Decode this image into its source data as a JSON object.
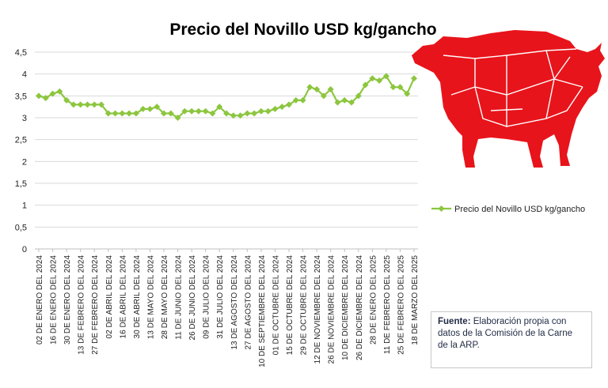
{
  "chart_data": {
    "type": "line",
    "title": "Precio del Novillo USD kg/gancho",
    "series": [
      {
        "name": "Precio del Novillo USD kg/gancho",
        "color": "#8cc63f",
        "values": [
          3.5,
          3.45,
          3.55,
          3.6,
          3.4,
          3.3,
          3.3,
          3.3,
          3.3,
          3.3,
          3.1,
          3.1,
          3.1,
          3.1,
          3.1,
          3.2,
          3.2,
          3.25,
          3.1,
          3.1,
          3.0,
          3.15,
          3.15,
          3.15,
          3.15,
          3.1,
          3.25,
          3.1,
          3.05,
          3.05,
          3.1,
          3.1,
          3.15,
          3.15,
          3.2,
          3.25,
          3.3,
          3.4,
          3.4,
          3.7,
          3.65,
          3.5,
          3.65,
          3.35,
          3.4,
          3.35,
          3.5,
          3.75,
          3.9,
          3.85,
          3.95,
          3.7,
          3.7,
          3.55,
          3.9
        ]
      }
    ],
    "x_tick_labels": [
      "02 DE ENERO DEL 2024",
      "16 DE ENERO  DEL 2024",
      "30 DE ENERO  DEL 2024",
      "13 DE FEBRERO DEL 2024",
      "27 DE FEBRERO DEL 2024",
      "02 DE ABRIL  DEL 2024",
      "16 DE ABRIL  DEL 2024",
      "30 DE ABRIL  DEL 2024",
      "13 DE MAYO DEL 2024",
      "28 DE MAYO DEL 2024",
      "11 DE JUNIO DEL 2024",
      "26 DE JUNIO DEL 2024",
      "09 DE JULIO DEL 2024",
      "31 DE JULIO DEL 2024",
      "13 DE AGOSTO DEL 2024",
      "27 DE AGOSTO  DEL 2024",
      "10 DE SEPTIEMBRE DEL 2024",
      "01 DE OCTUBRE  DEL 2024",
      "15 DE OCTUBRE DEL 2024",
      "29 DE OCTUBRE  DEL 2024",
      "12 DE NOVIEMBRE DEL 2024",
      "26 DE NOVIEMBRE DEL 2024",
      "10 DE DICIEMBRE DEL 2024",
      "26  DE DICIEMBRE DEL 2024",
      "28 DE ENERO DEL 2025",
      "11 DE FEBRERO DEL 2025",
      "25 DE FEBRERO DEL 2025",
      "18 DE MARZO DEL 2025"
    ],
    "y_ticks": [
      "0",
      "0,5",
      "1",
      "1,5",
      "2",
      "2,5",
      "3",
      "3,5",
      "4",
      "4,5"
    ],
    "ylim": [
      0,
      4.5
    ],
    "grid": true,
    "legend_position": "right"
  },
  "source": {
    "label": "Fuente:",
    "text": " Elaboración propia con datos de la Comisión de la Carne de la ARP."
  },
  "illustration": {
    "name": "bull-cuts-silhouette",
    "color": "#e8141b"
  }
}
